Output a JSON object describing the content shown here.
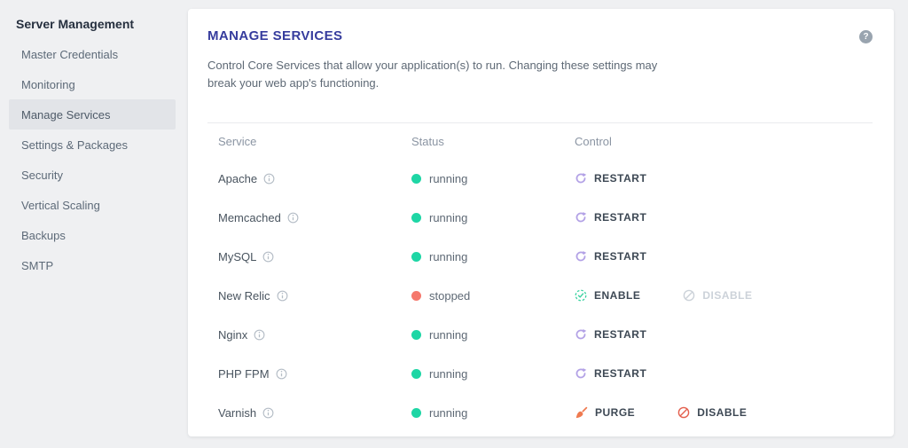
{
  "sidebar": {
    "header": "Server Management",
    "items": [
      {
        "label": "Master Credentials",
        "active": false
      },
      {
        "label": "Monitoring",
        "active": false
      },
      {
        "label": "Manage Services",
        "active": true
      },
      {
        "label": "Settings & Packages",
        "active": false
      },
      {
        "label": "Security",
        "active": false
      },
      {
        "label": "Vertical Scaling",
        "active": false
      },
      {
        "label": "Backups",
        "active": false
      },
      {
        "label": "SMTP",
        "active": false
      }
    ]
  },
  "panel": {
    "title": "MANAGE SERVICES",
    "description": "Control Core Services that allow your application(s) to run. Changing these settings may break your web app's functioning.",
    "help_icon": "question-mark-icon"
  },
  "table": {
    "columns": [
      "Service",
      "Status",
      "Control"
    ],
    "rows": [
      {
        "service": "Apache",
        "info_icon": "info-icon",
        "status": "running",
        "status_color": "#1ed6a5",
        "actions": [
          {
            "label": "RESTART",
            "icon": "restart-icon",
            "icon_color": "#b3a2e6",
            "disabled": false
          }
        ]
      },
      {
        "service": "Memcached",
        "info_icon": "info-icon",
        "status": "running",
        "status_color": "#1ed6a5",
        "actions": [
          {
            "label": "RESTART",
            "icon": "restart-icon",
            "icon_color": "#b3a2e6",
            "disabled": false
          }
        ]
      },
      {
        "service": "MySQL",
        "info_icon": "info-icon",
        "status": "running",
        "status_color": "#1ed6a5",
        "actions": [
          {
            "label": "RESTART",
            "icon": "restart-icon",
            "icon_color": "#b3a2e6",
            "disabled": false
          }
        ]
      },
      {
        "service": "New Relic",
        "info_icon": "info-icon",
        "status": "stopped",
        "status_color": "#f5786c",
        "actions": [
          {
            "label": "ENABLE",
            "icon": "enable-icon",
            "icon_color": "#3bd2a0",
            "disabled": false
          },
          {
            "label": "DISABLE",
            "icon": "disable-icon",
            "icon_color": "#ccd2d9",
            "disabled": true
          }
        ]
      },
      {
        "service": "Nginx",
        "info_icon": "info-icon",
        "status": "running",
        "status_color": "#1ed6a5",
        "actions": [
          {
            "label": "RESTART",
            "icon": "restart-icon",
            "icon_color": "#b3a2e6",
            "disabled": false
          }
        ]
      },
      {
        "service": "PHP FPM",
        "info_icon": "info-icon",
        "status": "running",
        "status_color": "#1ed6a5",
        "actions": [
          {
            "label": "RESTART",
            "icon": "restart-icon",
            "icon_color": "#b3a2e6",
            "disabled": false
          }
        ]
      },
      {
        "service": "Varnish",
        "info_icon": "info-icon",
        "status": "running",
        "status_color": "#1ed6a5",
        "actions": [
          {
            "label": "PURGE",
            "icon": "purge-icon",
            "icon_color": "#ef7a50",
            "disabled": false
          },
          {
            "label": "DISABLE",
            "icon": "disable-icon",
            "icon_color": "#e4604e",
            "disabled": false
          }
        ]
      }
    ]
  },
  "colors": {
    "page_background": "#eff0f2",
    "card_background": "#ffffff",
    "title": "#363c9d",
    "sidebar_active_background": "#e2e4e8",
    "status_running": "#1ed6a5",
    "status_stopped": "#f5786c",
    "restart_icon": "#b3a2e6",
    "enable_icon": "#3bd2a0",
    "purge_icon": "#ef7a50",
    "disable_active_icon": "#e4604e",
    "disabled_text": "#ccd2d9"
  }
}
